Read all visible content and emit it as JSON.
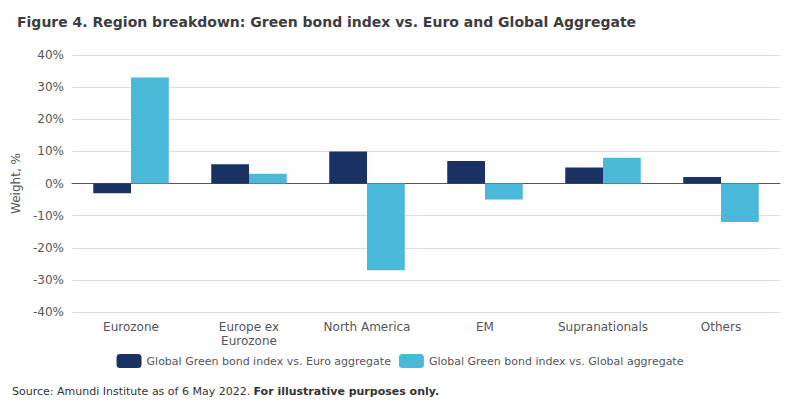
{
  "chart_data": {
    "type": "bar",
    "title": "Figure 4. Region breakdown: Green bond index vs. Euro and Global Aggregate",
    "categories": [
      "Eurozone",
      "Europe ex\nEurozone",
      "North America",
      "EM",
      "Supranationals",
      "Others"
    ],
    "series": [
      {
        "name": "Global Green bond index vs. Euro aggregate",
        "color": "#1a3263",
        "values": [
          -3.0,
          6.0,
          10.0,
          7.0,
          5.0,
          2.0
        ]
      },
      {
        "name": "Global Green bond index vs. Global aggregate",
        "color": "#4ab8d8",
        "values": [
          33.0,
          3.0,
          -27.0,
          -5.0,
          8.0,
          -12.0
        ]
      }
    ],
    "ylabel": "Weight, %",
    "ylim": [
      -40,
      40
    ],
    "yticks": [
      {
        "value": -40,
        "label": "-40%"
      },
      {
        "value": -30,
        "label": "-30%"
      },
      {
        "value": -20,
        "label": "-20%"
      },
      {
        "value": -10,
        "label": "-10%"
      },
      {
        "value": 0,
        "label": "0%"
      },
      {
        "value": 10,
        "label": "10%"
      },
      {
        "value": 20,
        "label": "20%"
      },
      {
        "value": 30,
        "label": "30%"
      },
      {
        "value": 40,
        "label": "40%"
      }
    ],
    "grid": true,
    "legend": "bottom",
    "annotations": [
      "Source: Amundi Institute as of 6 May 2022.",
      "For illustrative purposes only."
    ]
  }
}
